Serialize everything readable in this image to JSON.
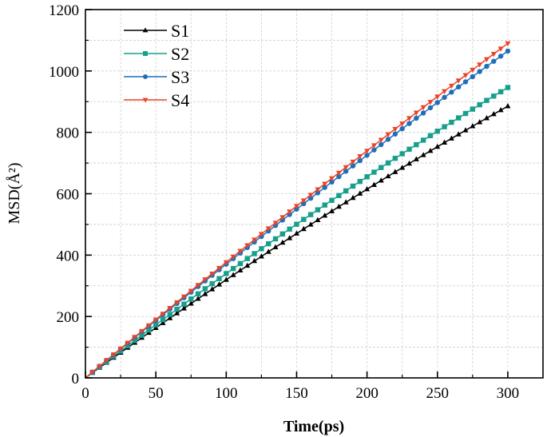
{
  "chart_data": {
    "type": "line",
    "title": "",
    "xlabel": "Time(ps)",
    "ylabel": "MSD(Å²)",
    "xlim": [
      0,
      325
    ],
    "ylim": [
      0,
      1200
    ],
    "xticks": [
      0,
      50,
      100,
      150,
      200,
      250,
      300
    ],
    "yticks": [
      0,
      200,
      400,
      600,
      800,
      1000,
      1200
    ],
    "grid": true,
    "legend_position": "top-left",
    "x": [
      0,
      5,
      10,
      15,
      20,
      25,
      30,
      35,
      40,
      45,
      50,
      55,
      60,
      65,
      70,
      75,
      80,
      85,
      90,
      95,
      100,
      105,
      110,
      115,
      120,
      125,
      130,
      135,
      140,
      145,
      150,
      155,
      160,
      165,
      170,
      175,
      180,
      185,
      190,
      195,
      200,
      205,
      210,
      215,
      220,
      225,
      230,
      235,
      240,
      245,
      250,
      255,
      260,
      265,
      270,
      275,
      280,
      285,
      290,
      295,
      300
    ],
    "series": [
      {
        "name": "S1",
        "color": "#000000",
        "marker": "triangle-up",
        "values": [
          0,
          16.6,
          33.1,
          49.5,
          65.9,
          82.2,
          98.5,
          114.7,
          130.8,
          146.9,
          162.9,
          178.9,
          194.8,
          210.6,
          226.4,
          242.1,
          257.7,
          273.3,
          288.8,
          304.3,
          319.7,
          335.0,
          350.3,
          365.5,
          380.7,
          395.8,
          410.8,
          425.8,
          440.7,
          455.5,
          470.3,
          485.1,
          499.7,
          514.3,
          528.9,
          543.3,
          557.7,
          572.1,
          586.4,
          600.6,
          614.8,
          628.9,
          643.0,
          657.0,
          670.9,
          684.7,
          698.5,
          712.3,
          726.0,
          739.6,
          753.1,
          766.6,
          780.1,
          793.4,
          806.7,
          820.0,
          833.2,
          846.3,
          859.4,
          872.4,
          885.3
        ]
      },
      {
        "name": "S2",
        "color": "#16a08c",
        "marker": "square",
        "values": [
          0,
          17.6,
          35.1,
          52.5,
          69.9,
          87.2,
          104.5,
          121.7,
          138.9,
          155.9,
          173.0,
          189.9,
          206.8,
          223.6,
          240.4,
          257.1,
          273.8,
          290.4,
          306.9,
          323.4,
          339.8,
          356.2,
          372.4,
          388.7,
          404.8,
          420.9,
          437.0,
          453.0,
          468.9,
          484.8,
          500.6,
          516.3,
          532.0,
          547.6,
          563.1,
          578.6,
          594.1,
          609.5,
          624.8,
          640.0,
          655.2,
          670.3,
          685.4,
          700.4,
          715.4,
          730.2,
          745.1,
          759.8,
          774.5,
          789.2,
          803.8,
          818.3,
          832.7,
          847.1,
          861.5,
          875.7,
          889.9,
          904.1,
          918.2,
          932.2,
          946.2
        ]
      },
      {
        "name": "S3",
        "color": "#1f6fb8",
        "marker": "circle",
        "values": [
          0,
          18.9,
          37.8,
          56.6,
          75.3,
          94.1,
          112.8,
          131.5,
          150.1,
          168.7,
          187.2,
          205.7,
          224.2,
          242.6,
          261.0,
          279.3,
          297.7,
          315.9,
          334.2,
          352.4,
          370.5,
          388.6,
          406.7,
          424.8,
          442.8,
          460.7,
          478.6,
          496.5,
          514.4,
          532.2,
          549.9,
          567.7,
          585.4,
          603.0,
          620.6,
          638.2,
          655.7,
          673.2,
          690.7,
          708.1,
          725.5,
          742.8,
          760.1,
          777.4,
          794.6,
          811.8,
          828.9,
          846.0,
          863.1,
          880.1,
          897.1,
          914.1,
          931.0,
          947.9,
          964.7,
          981.5,
          998.2,
          1015.0,
          1031.6,
          1048.3,
          1064.9
        ]
      },
      {
        "name": "S4",
        "color": "#ec4226",
        "marker": "triangle-down",
        "values": [
          0,
          19.1,
          38.3,
          57.3,
          76.4,
          95.4,
          114.4,
          133.3,
          152.3,
          171.1,
          190.0,
          208.8,
          227.6,
          246.3,
          265.0,
          283.7,
          302.4,
          321.0,
          339.6,
          358.1,
          376.6,
          395.1,
          413.6,
          432.0,
          450.4,
          468.7,
          487.0,
          505.3,
          523.5,
          541.8,
          559.9,
          578.1,
          596.2,
          614.3,
          632.3,
          650.3,
          668.3,
          686.3,
          704.2,
          722.1,
          739.9,
          757.7,
          775.5,
          793.3,
          811.0,
          828.7,
          846.3,
          863.9,
          881.5,
          899.0,
          916.6,
          934.0,
          951.5,
          968.9,
          986.3,
          1003.6,
          1020.9,
          1038.2,
          1055.5,
          1072.7,
          1089.9
        ]
      }
    ]
  }
}
